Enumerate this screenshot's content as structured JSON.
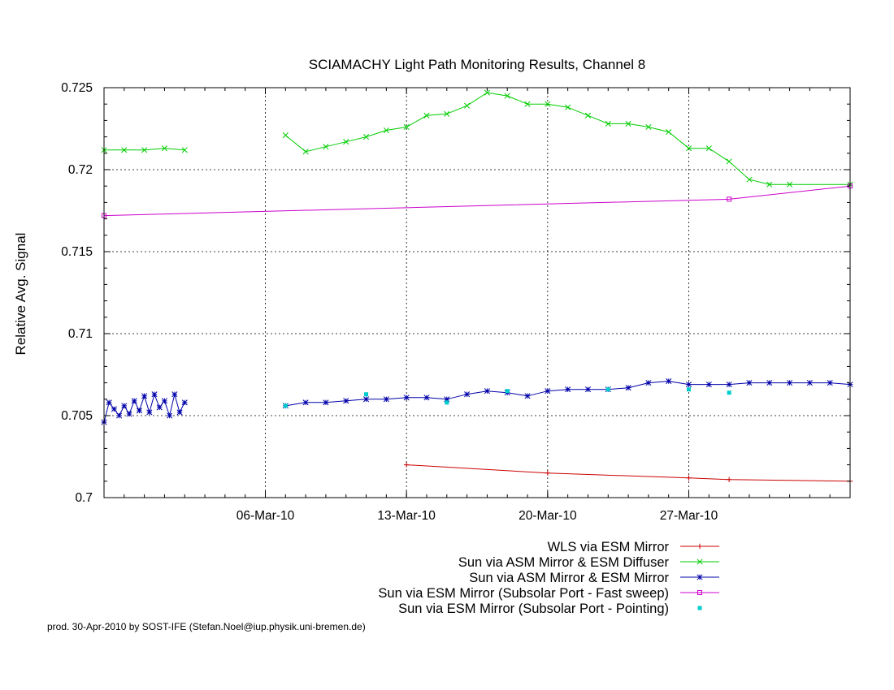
{
  "chart_data": {
    "type": "line",
    "title": "SCIAMACHY Light Path Monitoring Results, Channel 8",
    "xlabel": "",
    "ylabel": "Relative Avg. Signal",
    "xlim": [
      "2010-02-26",
      "2010-04-04"
    ],
    "ylim": [
      0.7,
      0.725
    ],
    "grid": true,
    "legend_position": "bottom-right",
    "x_ticks": [
      {
        "date": "2010-03-06",
        "label": "06-Mar-10"
      },
      {
        "date": "2010-03-13",
        "label": "13-Mar-10"
      },
      {
        "date": "2010-03-20",
        "label": "20-Mar-10"
      },
      {
        "date": "2010-03-27",
        "label": "27-Mar-10"
      }
    ],
    "y_ticks": [
      {
        "value": 0.7,
        "label": "0.7"
      },
      {
        "value": 0.705,
        "label": "0.705"
      },
      {
        "value": 0.71,
        "label": "0.71"
      },
      {
        "value": 0.715,
        "label": "0.715"
      },
      {
        "value": 0.72,
        "label": "0.72"
      },
      {
        "value": 0.725,
        "label": "0.725"
      }
    ],
    "series": [
      {
        "name": "WLS via ESM Mirror",
        "color": "#cc0000",
        "marker": "plus",
        "style": "line",
        "points": [
          [
            "2010-03-13",
            0.702
          ],
          [
            "2010-03-20",
            0.7015
          ],
          [
            "2010-03-27",
            0.7012
          ],
          [
            "2010-03-29",
            0.7011
          ],
          [
            "2010-04-04",
            0.701
          ]
        ]
      },
      {
        "name": "Sun via ASM Mirror & ESM Diffuser",
        "color": "#00cc00",
        "marker": "x",
        "style": "line",
        "points": [
          [
            "2010-02-26",
            0.7212
          ],
          [
            "2010-02-27",
            0.7212
          ],
          [
            "2010-02-28",
            0.7212
          ],
          [
            "2010-03-01",
            0.7213
          ],
          [
            "2010-03-02",
            0.7212
          ],
          null,
          [
            "2010-03-07",
            0.7221
          ],
          [
            "2010-03-08",
            0.7211
          ],
          [
            "2010-03-09",
            0.7214
          ],
          [
            "2010-03-10",
            0.7217
          ],
          [
            "2010-03-11",
            0.722
          ],
          [
            "2010-03-12",
            0.7224
          ],
          [
            "2010-03-13",
            0.7226
          ],
          [
            "2010-03-14",
            0.7233
          ],
          [
            "2010-03-15",
            0.7234
          ],
          [
            "2010-03-16",
            0.7239
          ],
          [
            "2010-03-17",
            0.7247
          ],
          [
            "2010-03-18",
            0.7245
          ],
          [
            "2010-03-19",
            0.724
          ],
          [
            "2010-03-20",
            0.724
          ],
          [
            "2010-03-21",
            0.7238
          ],
          [
            "2010-03-22",
            0.7233
          ],
          [
            "2010-03-23",
            0.7228
          ],
          [
            "2010-03-24",
            0.7228
          ],
          [
            "2010-03-25",
            0.7226
          ],
          [
            "2010-03-26",
            0.7223
          ],
          [
            "2010-03-27",
            0.7213
          ],
          [
            "2010-03-28",
            0.7213
          ],
          [
            "2010-03-29",
            0.7205
          ],
          [
            "2010-03-30",
            0.7194
          ],
          [
            "2010-03-31",
            0.7191
          ],
          [
            "2010-04-01",
            0.7191
          ],
          [
            "2010-04-04",
            0.7191
          ]
        ]
      },
      {
        "name": "Sun via ASM Mirror & ESM Mirror",
        "color": "#0000aa",
        "marker": "star",
        "style": "line",
        "points": [
          [
            "2010-02-26",
            0.7046
          ],
          [
            "2010-02-26.25",
            0.7058
          ],
          [
            "2010-02-26.5",
            0.7054
          ],
          [
            "2010-02-26.75",
            0.705
          ],
          [
            "2010-02-27",
            0.7056
          ],
          [
            "2010-02-27.25",
            0.7051
          ],
          [
            "2010-02-27.5",
            0.7059
          ],
          [
            "2010-02-27.75",
            0.7053
          ],
          [
            "2010-02-28",
            0.7062
          ],
          [
            "2010-02-28.25",
            0.7052
          ],
          [
            "2010-02-28.5",
            0.7063
          ],
          [
            "2010-02-28.75",
            0.7055
          ],
          [
            "2010-03-01",
            0.7059
          ],
          [
            "2010-03-01.25",
            0.705
          ],
          [
            "2010-03-01.5",
            0.7063
          ],
          [
            "2010-03-01.75",
            0.7052
          ],
          [
            "2010-03-02",
            0.7058
          ],
          null,
          [
            "2010-03-07",
            0.7056
          ],
          [
            "2010-03-08",
            0.7058
          ],
          [
            "2010-03-09",
            0.7058
          ],
          [
            "2010-03-10",
            0.7059
          ],
          [
            "2010-03-11",
            0.706
          ],
          [
            "2010-03-12",
            0.706
          ],
          [
            "2010-03-13",
            0.7061
          ],
          [
            "2010-03-14",
            0.7061
          ],
          [
            "2010-03-15",
            0.706
          ],
          [
            "2010-03-16",
            0.7063
          ],
          [
            "2010-03-17",
            0.7065
          ],
          [
            "2010-03-18",
            0.7064
          ],
          [
            "2010-03-19",
            0.7062
          ],
          [
            "2010-03-20",
            0.7065
          ],
          [
            "2010-03-21",
            0.7066
          ],
          [
            "2010-03-22",
            0.7066
          ],
          [
            "2010-03-23",
            0.7066
          ],
          [
            "2010-03-24",
            0.7067
          ],
          [
            "2010-03-25",
            0.707
          ],
          [
            "2010-03-26",
            0.7071
          ],
          [
            "2010-03-27",
            0.7069
          ],
          [
            "2010-03-28",
            0.7069
          ],
          [
            "2010-03-29",
            0.7069
          ],
          [
            "2010-03-30",
            0.707
          ],
          [
            "2010-03-31",
            0.707
          ],
          [
            "2010-04-01",
            0.707
          ],
          [
            "2010-04-02",
            0.707
          ],
          [
            "2010-04-03",
            0.707
          ],
          [
            "2010-04-04",
            0.7069
          ]
        ]
      },
      {
        "name": "Sun via ESM Mirror (Subsolar Port - Fast sweep)",
        "color": "#cc00cc",
        "marker": "square",
        "style": "line",
        "points": [
          [
            "2010-02-26",
            0.7172
          ],
          [
            "2010-03-29",
            0.7182
          ],
          [
            "2010-04-04",
            0.719
          ]
        ]
      },
      {
        "name": "Sun via ESM Mirror (Subsolar Port - Pointing)",
        "color": "#00cccc",
        "marker": "filled-square",
        "style": "points",
        "points": [
          [
            "2010-03-07",
            0.7056
          ],
          [
            "2010-03-11",
            0.7063
          ],
          [
            "2010-03-15",
            0.7058
          ],
          [
            "2010-03-18",
            0.7065
          ],
          [
            "2010-03-23",
            0.7066
          ],
          [
            "2010-03-27",
            0.7066
          ],
          [
            "2010-03-29",
            0.7064
          ]
        ]
      }
    ]
  },
  "footer": "prod. 30-Apr-2010 by SOST-IFE (Stefan.Noel@iup.physik.uni-bremen.de)"
}
